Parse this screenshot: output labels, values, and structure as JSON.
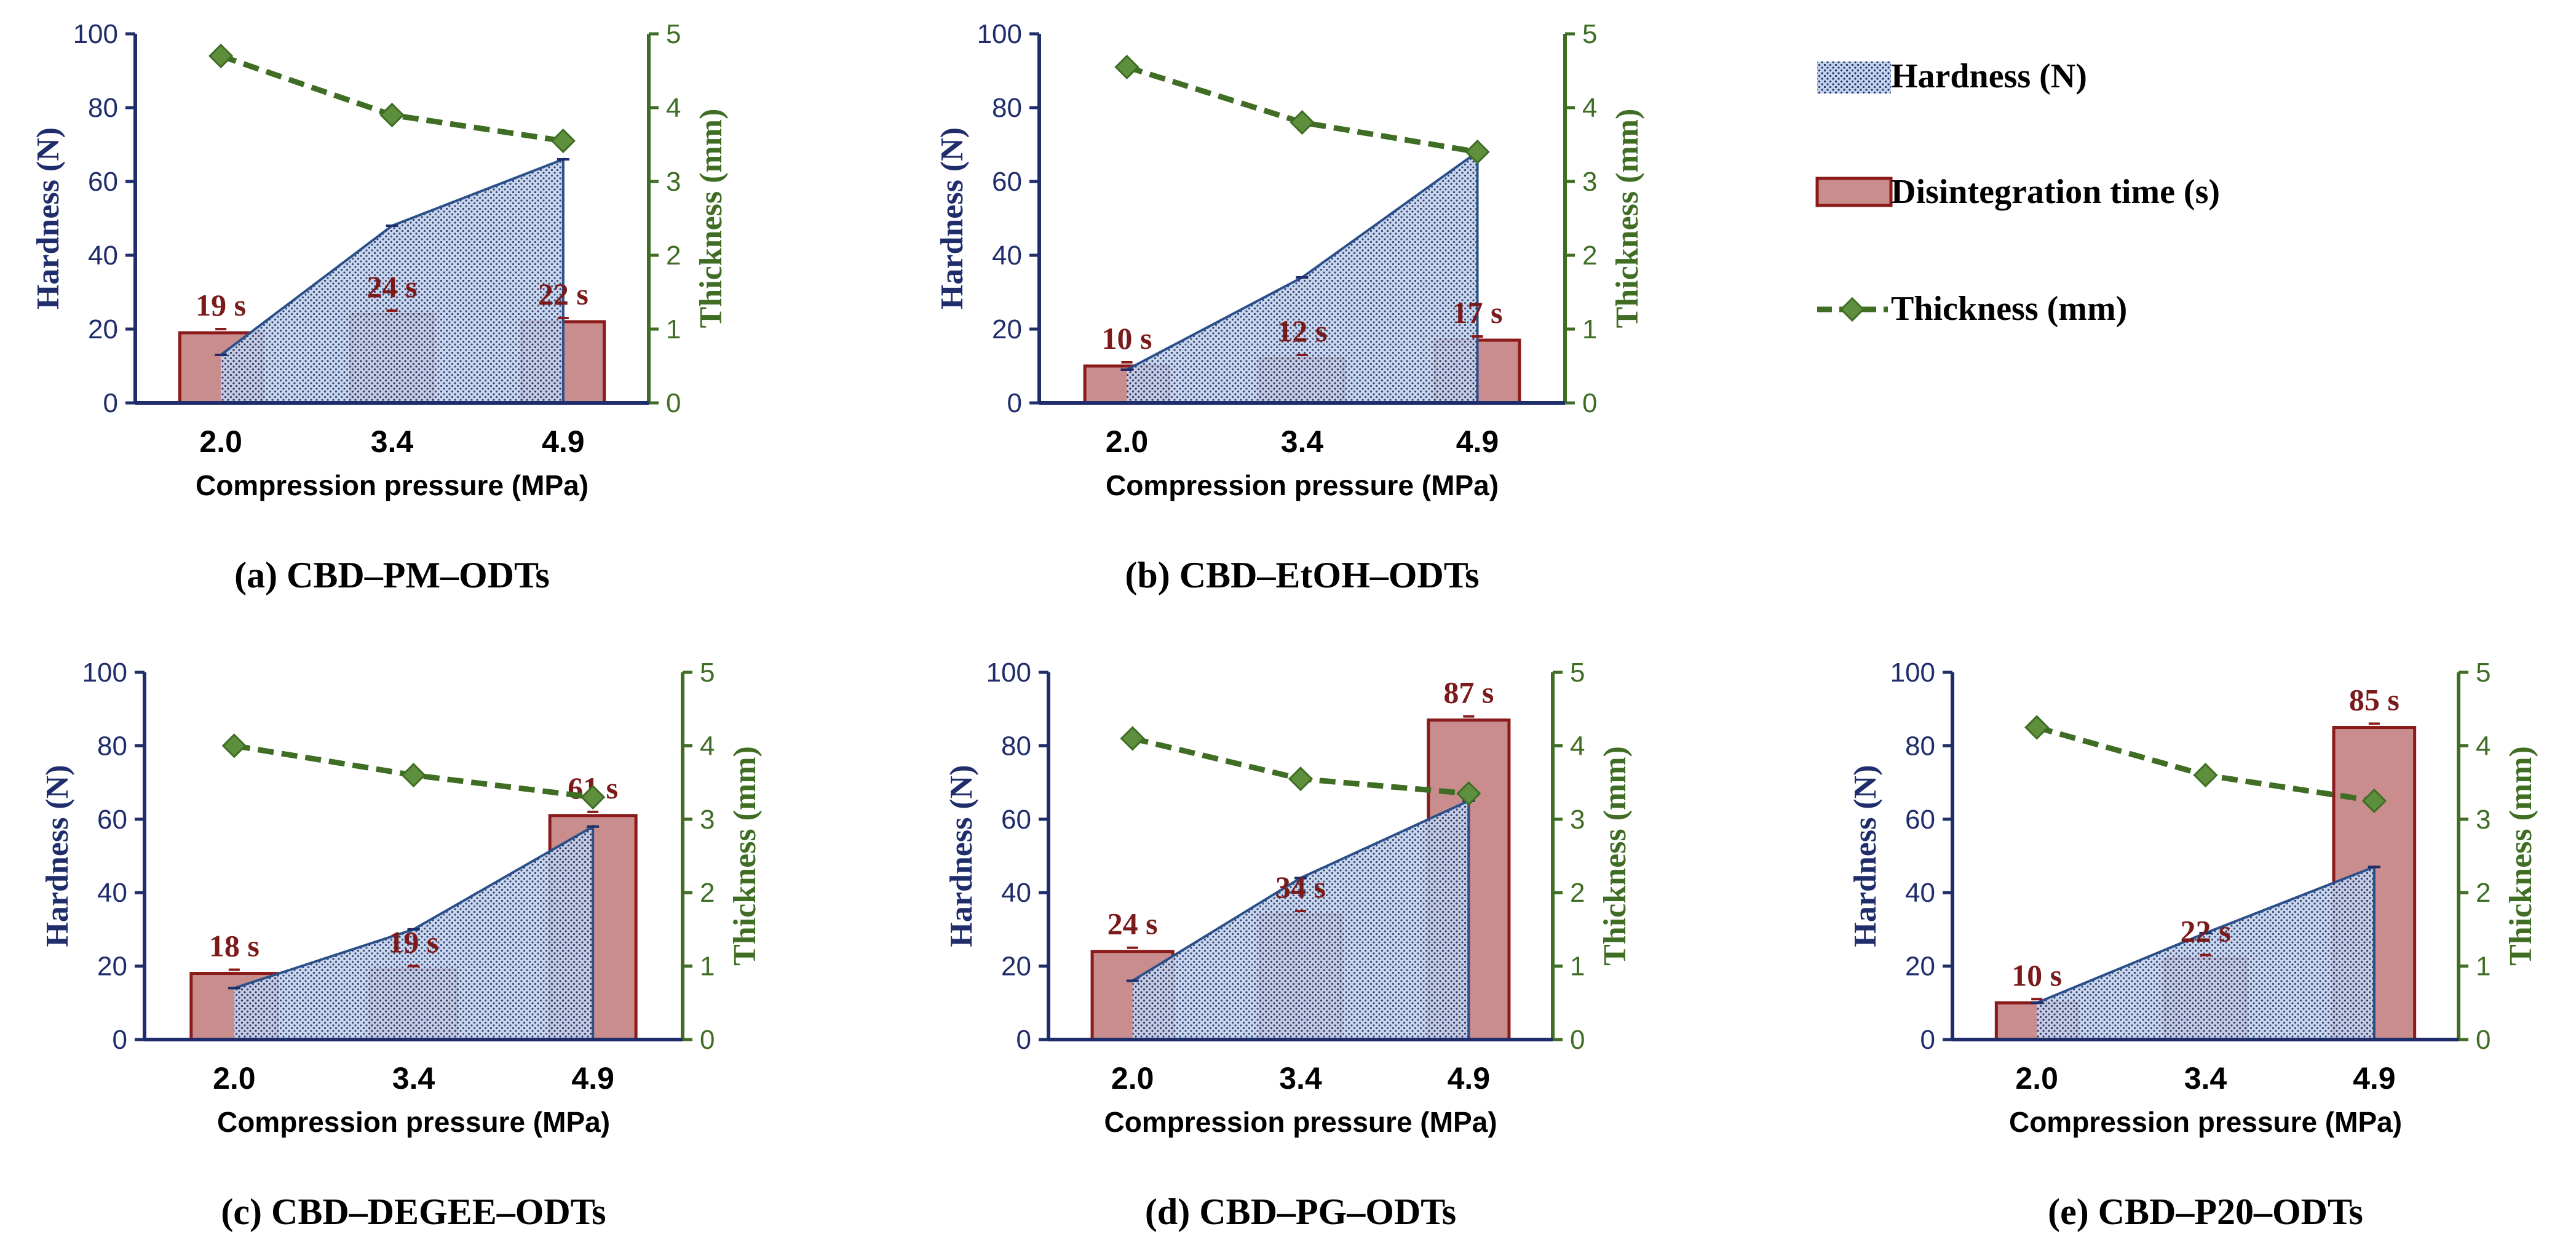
{
  "colors": {
    "hardness_axis": "#1f2d6b",
    "hardness_fill": "#c3d3ea",
    "hardness_dot": "#1f2d6b",
    "hardness_line": "#2a4f8a",
    "bar_fill": "#c98d8d",
    "bar_fill_light": "#e4b9b9",
    "bar_edge": "#8b1a1a",
    "thickness": "#3f6d24",
    "thickness_marker": "#5e8f3c",
    "label_red": "#7a1a1a"
  },
  "legend": {
    "hardness": "Hardness (N)",
    "disintegration": "Disintegration time (s)",
    "thickness": "Thickness (mm)"
  },
  "chart_data": [
    {
      "type": "bar+area+line",
      "title": "(a) CBD–PM–ODTs",
      "xlabel": "Compression pressure (MPa)",
      "ylabel_left": "Hardness (N)",
      "ylabel_right": "Thickness (mm)",
      "categories": [
        "2.0",
        "3.4",
        "4.9"
      ],
      "ylim_left": [
        0,
        100
      ],
      "yticks_left": [
        "0",
        "20",
        "40",
        "60",
        "80",
        "100"
      ],
      "ylim_right": [
        0,
        5
      ],
      "yticks_right": [
        "0",
        "1",
        "2",
        "3",
        "4",
        "5"
      ],
      "series": [
        {
          "name": "Hardness (N)",
          "kind": "area",
          "values": [
            13,
            48,
            66
          ]
        },
        {
          "name": "Disintegration time (s)",
          "kind": "bar",
          "values": [
            19,
            24,
            22
          ],
          "labels": [
            "19 s",
            "24 s",
            "22 s"
          ]
        },
        {
          "name": "Thickness (mm)",
          "kind": "line",
          "values": [
            4.7,
            3.9,
            3.55
          ]
        }
      ]
    },
    {
      "type": "bar+area+line",
      "title": "(b) CBD–EtOH–ODTs",
      "xlabel": "Compression pressure (MPa)",
      "ylabel_left": "Hardness (N)",
      "ylabel_right": "Thickness (mm)",
      "categories": [
        "2.0",
        "3.4",
        "4.9"
      ],
      "ylim_left": [
        0,
        100
      ],
      "yticks_left": [
        "0",
        "20",
        "40",
        "60",
        "80",
        "100"
      ],
      "ylim_right": [
        0,
        5
      ],
      "yticks_right": [
        "0",
        "1",
        "2",
        "3",
        "4",
        "5"
      ],
      "series": [
        {
          "name": "Hardness (N)",
          "kind": "area",
          "values": [
            9,
            34,
            68
          ]
        },
        {
          "name": "Disintegration time (s)",
          "kind": "bar",
          "values": [
            10,
            12,
            17
          ],
          "labels": [
            "10 s",
            "12 s",
            "17 s"
          ]
        },
        {
          "name": "Thickness (mm)",
          "kind": "line",
          "values": [
            4.55,
            3.8,
            3.4
          ]
        }
      ]
    },
    {
      "type": "bar+area+line",
      "title": "(c) CBD–DEGEE–ODTs",
      "xlabel": "Compression pressure (MPa)",
      "ylabel_left": "Hardness (N)",
      "ylabel_right": "Thickness (mm)",
      "categories": [
        "2.0",
        "3.4",
        "4.9"
      ],
      "ylim_left": [
        0,
        100
      ],
      "yticks_left": [
        "0",
        "20",
        "40",
        "60",
        "80",
        "100"
      ],
      "ylim_right": [
        0,
        5
      ],
      "yticks_right": [
        "0",
        "1",
        "2",
        "3",
        "4",
        "5"
      ],
      "series": [
        {
          "name": "Hardness (N)",
          "kind": "area",
          "values": [
            14,
            30,
            58
          ]
        },
        {
          "name": "Disintegration time (s)",
          "kind": "bar",
          "values": [
            18,
            19,
            61
          ],
          "labels": [
            "18 s",
            "19 s",
            "61 s"
          ]
        },
        {
          "name": "Thickness (mm)",
          "kind": "line",
          "values": [
            4.0,
            3.6,
            3.3
          ]
        }
      ]
    },
    {
      "type": "bar+area+line",
      "title": "(d) CBD–PG–ODTs",
      "xlabel": "Compression pressure (MPa)",
      "ylabel_left": "Hardness (N)",
      "ylabel_right": "Thickness (mm)",
      "categories": [
        "2.0",
        "3.4",
        "4.9"
      ],
      "ylim_left": [
        0,
        100
      ],
      "yticks_left": [
        "0",
        "20",
        "40",
        "60",
        "80",
        "100"
      ],
      "ylim_right": [
        0,
        5
      ],
      "yticks_right": [
        "0",
        "1",
        "2",
        "3",
        "4",
        "5"
      ],
      "series": [
        {
          "name": "Hardness (N)",
          "kind": "area",
          "values": [
            16,
            44,
            65
          ]
        },
        {
          "name": "Disintegration time (s)",
          "kind": "bar",
          "values": [
            24,
            34,
            87
          ],
          "labels": [
            "24 s",
            "34 s",
            "87 s"
          ]
        },
        {
          "name": "Thickness (mm)",
          "kind": "line",
          "values": [
            4.1,
            3.55,
            3.35
          ]
        }
      ]
    },
    {
      "type": "bar+area+line",
      "title": "(e) CBD–P20–ODTs",
      "xlabel": "Compression pressure (MPa)",
      "ylabel_left": "Hardness (N)",
      "ylabel_right": "Thickness (mm)",
      "categories": [
        "2.0",
        "3.4",
        "4.9"
      ],
      "ylim_left": [
        0,
        100
      ],
      "yticks_left": [
        "0",
        "20",
        "40",
        "60",
        "80",
        "100"
      ],
      "ylim_right": [
        0,
        5
      ],
      "yticks_right": [
        "0",
        "1",
        "2",
        "3",
        "4",
        "5"
      ],
      "series": [
        {
          "name": "Hardness (N)",
          "kind": "area",
          "values": [
            10,
            29,
            47
          ]
        },
        {
          "name": "Disintegration time (s)",
          "kind": "bar",
          "values": [
            10,
            22,
            85
          ],
          "labels": [
            "10 s",
            "22 s",
            "85 s"
          ]
        },
        {
          "name": "Thickness (mm)",
          "kind": "line",
          "values": [
            4.25,
            3.6,
            3.25
          ]
        }
      ]
    }
  ]
}
